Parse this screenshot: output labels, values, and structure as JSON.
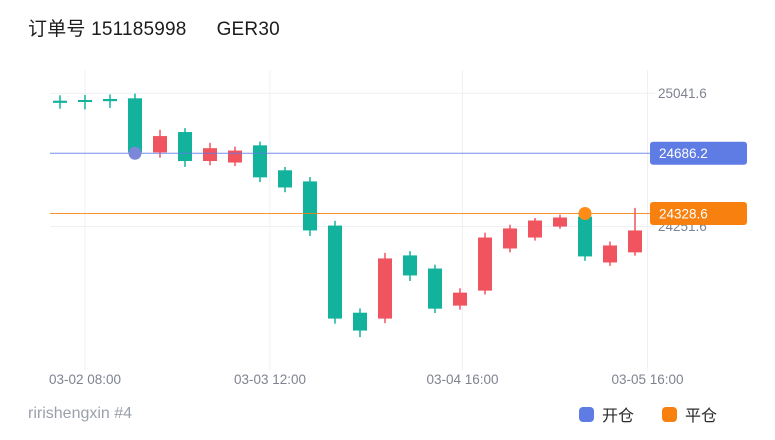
{
  "header": {
    "order_label": "订单号 151185998",
    "symbol": "GER30"
  },
  "footer": {
    "user": "ririshengxin #4"
  },
  "legend": {
    "open_label": "开仓",
    "close_label": "平仓"
  },
  "colors": {
    "up": "#f0545f",
    "down": "#13b29c",
    "open_line": "#5f7ce4",
    "open_dot": "#7b87d8",
    "close_line": "#f7800f",
    "close_dot": "#ff8b17",
    "grid": "#eef0f4",
    "axis_text": "#7e8390",
    "badge_text": "#ffffff"
  },
  "chart_data": {
    "type": "candlestick",
    "note_color_convention": "red = up, teal = down",
    "ylim": [
      23400,
      25180
    ],
    "ohlc": [
      [
        24998,
        25030,
        24950,
        24985
      ],
      [
        25002,
        25032,
        24946,
        24990
      ],
      [
        25008,
        25035,
        24955,
        24995
      ],
      [
        25012,
        25040,
        24655,
        24691
      ],
      [
        24691,
        24825,
        24660,
        24788
      ],
      [
        24812,
        24835,
        24605,
        24640
      ],
      [
        24640,
        24748,
        24615,
        24716
      ],
      [
        24631,
        24725,
        24610,
        24702
      ],
      [
        24733,
        24755,
        24515,
        24543
      ],
      [
        24585,
        24605,
        24455,
        24483
      ],
      [
        24519,
        24545,
        24195,
        24228
      ],
      [
        24257,
        24285,
        23675,
        23705
      ],
      [
        23740,
        23765,
        23595,
        23634
      ],
      [
        23705,
        24095,
        23678,
        24062
      ],
      [
        24080,
        24105,
        23928,
        23961
      ],
      [
        24002,
        24025,
        23738,
        23764
      ],
      [
        23782,
        23885,
        23758,
        23859
      ],
      [
        23871,
        24215,
        23848,
        24186
      ],
      [
        24121,
        24262,
        24098,
        24240
      ],
      [
        24186,
        24302,
        24168,
        24287
      ],
      [
        24251,
        24322,
        24238,
        24305
      ],
      [
        24310,
        24336,
        24048,
        24074
      ],
      [
        24038,
        24162,
        24018,
        24139
      ],
      [
        24098,
        24362,
        24078,
        24228
      ]
    ],
    "x_ticks": [
      {
        "label": "03-02 08:00",
        "i": 1
      },
      {
        "label": "03-03 12:00",
        "i": 8.4
      },
      {
        "label": "03-04 16:00",
        "i": 16.1
      },
      {
        "label": "03-05 16:00",
        "i": 23.5
      }
    ],
    "y_axis_labels": [
      {
        "label": "25041.6",
        "price": 25041.6
      },
      {
        "label": "24251.6",
        "price": 24251.6
      }
    ],
    "markers": [
      {
        "type": "open",
        "index": 3,
        "price": 24686.2,
        "label": "24686.2"
      },
      {
        "type": "close",
        "index": 21,
        "price": 24328.6,
        "label": "24328.6"
      }
    ]
  }
}
